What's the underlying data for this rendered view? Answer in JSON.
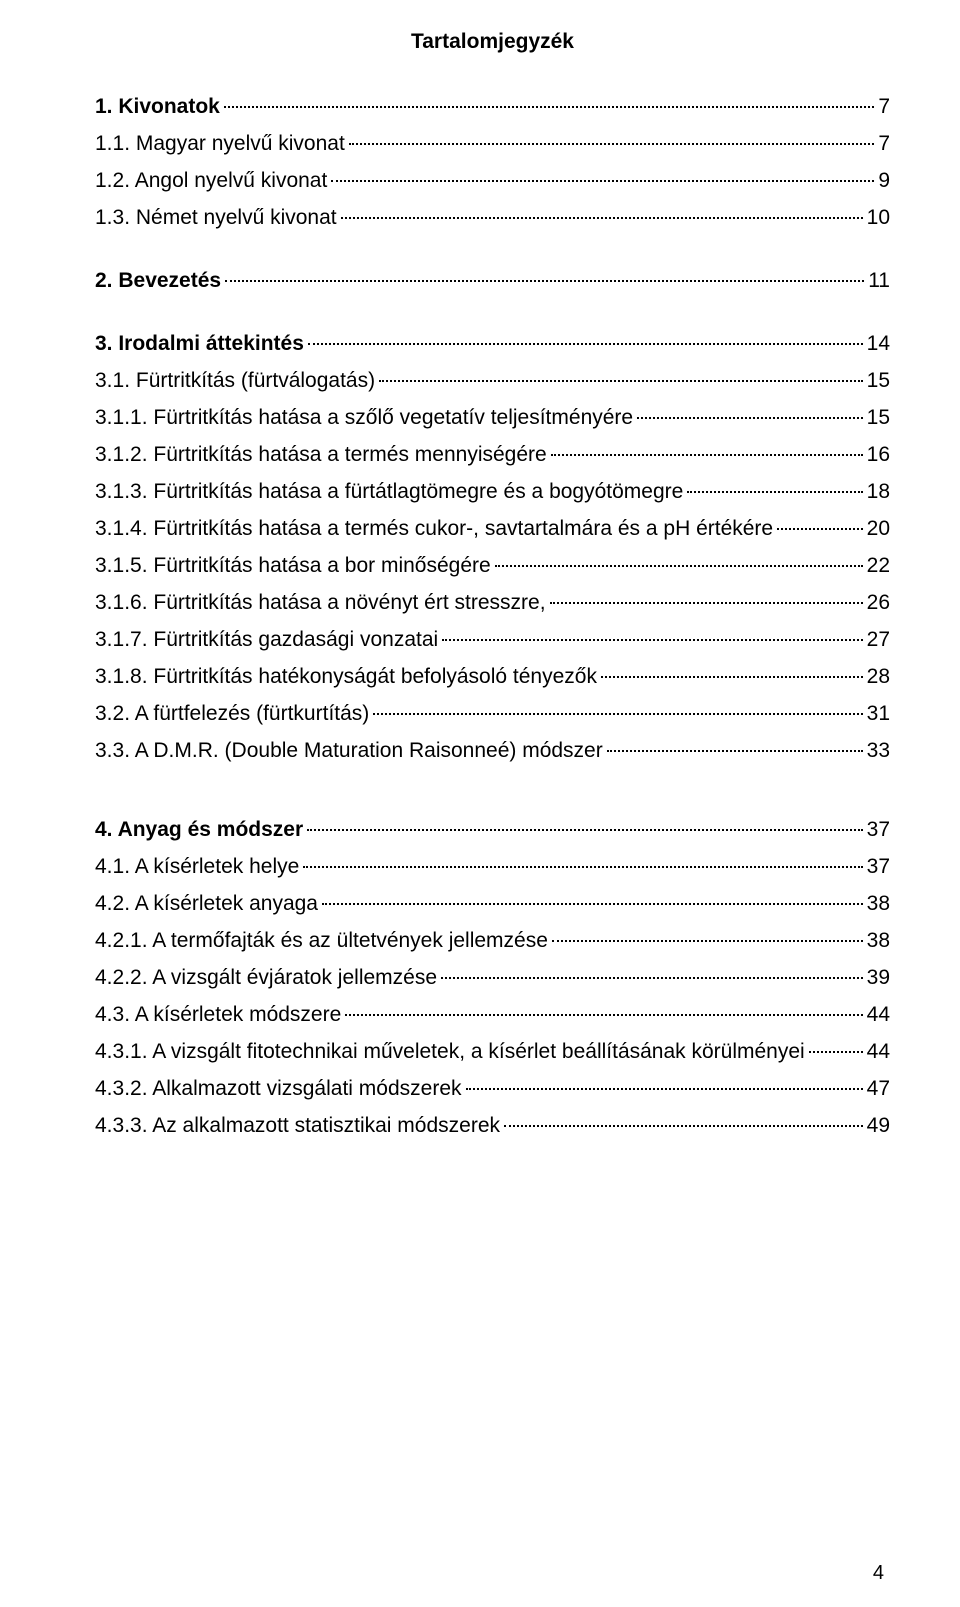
{
  "title": "Tartalomjegyzék",
  "page_number": "4",
  "entries": [
    {
      "label": "1. Kivonatok",
      "page": "7",
      "bold": true,
      "gap_after": false
    },
    {
      "label": "1.1. Magyar nyelvű kivonat",
      "page": "7",
      "bold": false,
      "gap_after": false
    },
    {
      "label": "1.2. Angol nyelvű kivonat",
      "page": "9",
      "bold": false,
      "gap_after": false
    },
    {
      "label": "1.3. Német nyelvű kivonat",
      "page": "10",
      "bold": false,
      "gap_after": true
    },
    {
      "label": "2. Bevezetés",
      "page": "11",
      "bold": true,
      "gap_after": true
    },
    {
      "label": "3. Irodalmi áttekintés",
      "page": "14",
      "bold": true,
      "gap_after": false
    },
    {
      "label": "3.1. Fürtritkítás (fürtválogatás)",
      "page": "15",
      "bold": false,
      "gap_after": false
    },
    {
      "label": "3.1.1. Fürtritkítás hatása a szőlő vegetatív teljesítményére",
      "page": "15",
      "bold": false,
      "gap_after": false
    },
    {
      "label": "3.1.2. Fürtritkítás hatása a termés mennyiségére",
      "page": "16",
      "bold": false,
      "gap_after": false
    },
    {
      "label": "3.1.3. Fürtritkítás hatása a fürtátlagtömegre és a bogyótömegre",
      "page": "18",
      "bold": false,
      "gap_after": false
    },
    {
      "label": "3.1.4. Fürtritkítás hatása a termés cukor-, savtartalmára és a pH értékére",
      "page": "20",
      "bold": false,
      "gap_after": false
    },
    {
      "label": "3.1.5. Fürtritkítás hatása a bor minőségére",
      "page": "22",
      "bold": false,
      "gap_after": false
    },
    {
      "label": "3.1.6. Fürtritkítás hatása a növényt ért stresszre,",
      "page": "26",
      "bold": false,
      "gap_after": false
    },
    {
      "label": "3.1.7. Fürtritkítás gazdasági vonzatai",
      "page": "27",
      "bold": false,
      "gap_after": false
    },
    {
      "label": "3.1.8. Fürtritkítás hatékonyságát befolyásoló tényezők",
      "page": "28",
      "bold": false,
      "gap_after": false
    },
    {
      "label": "3.2. A fürtfelezés (fürtkurtítás)",
      "page": "31",
      "bold": false,
      "gap_after": false
    },
    {
      "label": "3.3. A D.M.R. (Double Maturation Raisonneé) módszer",
      "page": "33",
      "bold": false,
      "gap_after_big": true
    },
    {
      "label": "4. Anyag és módszer",
      "page": "37",
      "bold": true,
      "gap_after": false
    },
    {
      "label": "4.1. A kísérletek helye",
      "page": "37",
      "bold": false,
      "gap_after": false
    },
    {
      "label": "4.2. A kísérletek anyaga",
      "page": "38",
      "bold": false,
      "gap_after": false
    },
    {
      "label": "4.2.1. A termőfajták és az ültetvények jellemzése",
      "page": "38",
      "bold": false,
      "gap_after": false
    },
    {
      "label": "4.2.2. A vizsgált évjáratok jellemzése",
      "page": "39",
      "bold": false,
      "gap_after": false
    },
    {
      "label": "4.3. A kísérletek módszere",
      "page": "44",
      "bold": false,
      "gap_after": false
    },
    {
      "label": "4.3.1. A vizsgált fitotechnikai műveletek, a kísérlet beállításának körülményei",
      "page": "44",
      "bold": false,
      "gap_after": false
    },
    {
      "label": "4.3.2. Alkalmazott vizsgálati módszerek",
      "page": "47",
      "bold": false,
      "gap_after": false
    },
    {
      "label": "4.3.3. Az alkalmazott statisztikai módszerek",
      "page": "49",
      "bold": false,
      "gap_after": false
    }
  ]
}
